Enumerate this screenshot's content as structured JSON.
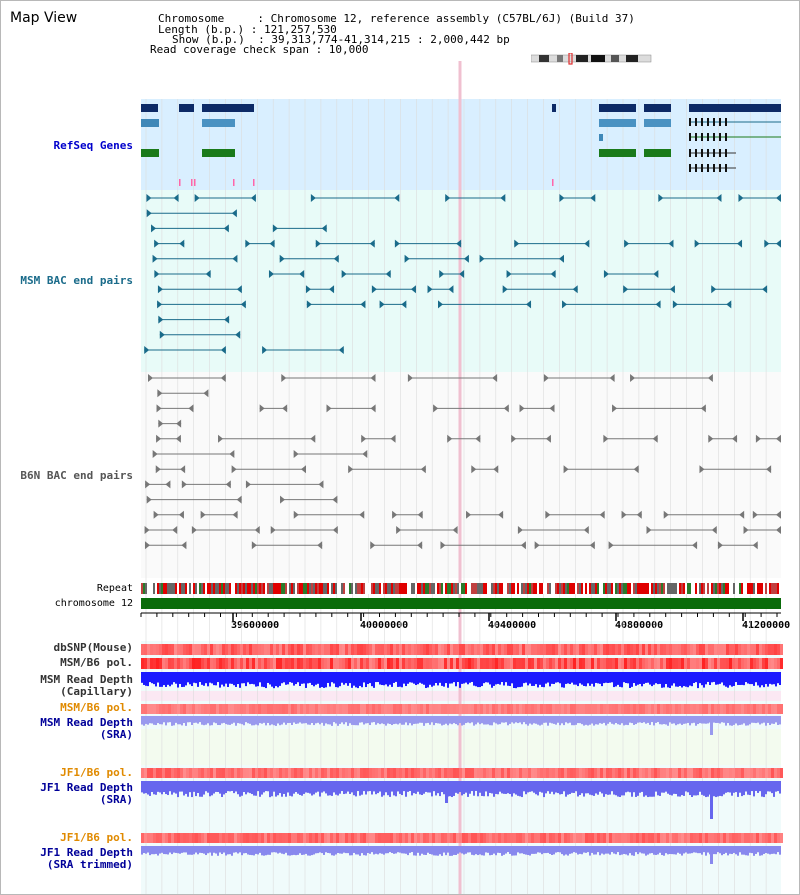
{
  "header": {
    "title": "Map View",
    "lines": [
      "Chromosome     : Chromosome 12, reference assembly (C57BL/6J) (Build 37)",
      "Length (b.p.) : 121,257,530",
      "Show (b.p.)  : 39,313,774-41,314,215 : 2,000,442 bp",
      "Read coverage check span : 10,000"
    ]
  },
  "tracks": {
    "refseq": "RefSeq Genes",
    "msm_bac": "MSM BAC end pairs",
    "b6n_bac": "B6N BAC end pairs",
    "repeat": "Repeat",
    "chromosome": "chromosome 12",
    "dbsnp": "dbSNP(Mouse)",
    "msm_b6_pol_1": "MSM/B6 pol.",
    "msm_depth_cap": "MSM Read Depth\n(Capillary)",
    "msm_b6_pol_2": "MSM/B6 pol.",
    "msm_depth_sra": "MSM Read Depth\n(SRA)",
    "jf1_b6_pol_1": "JF1/B6 pol.",
    "jf1_depth_sra": "JF1 Read Depth\n(SRA)",
    "jf1_b6_pol_2": "JF1/B6 pol.",
    "jf1_depth_trim": "JF1 Read Depth\n(SRA trimmed)"
  },
  "axis": {
    "ticks": [
      "39600000",
      "40000000",
      "40400000",
      "40800000",
      "41200000"
    ]
  },
  "colors": {
    "refseq_label": "#0000cc",
    "msm_label": "#1a6b8a",
    "b6n_label": "#555555",
    "pol_orange": "#e08a00",
    "depth_blue": "#000099"
  }
}
